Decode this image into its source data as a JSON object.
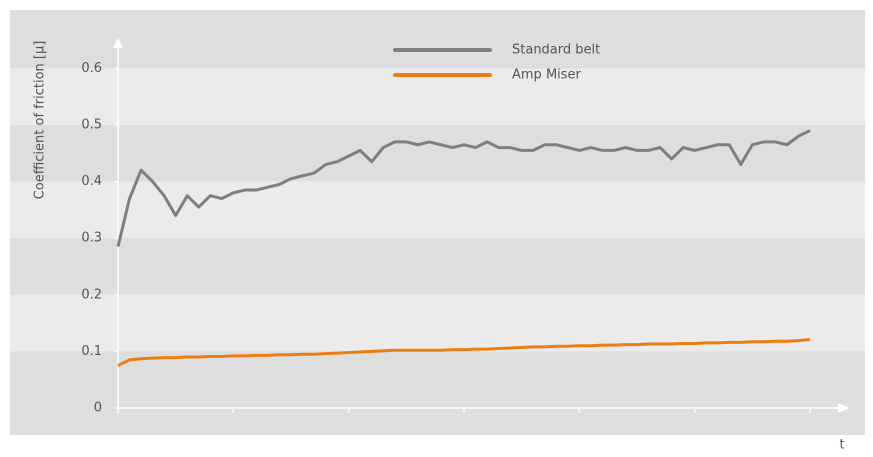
{
  "chart_data": {
    "type": "line",
    "y_label": "Coefficient of friction [µ]",
    "x_label": "t",
    "x": [
      0,
      1,
      2,
      3,
      4,
      5,
      6,
      7,
      8,
      9,
      10,
      11,
      12,
      13,
      14,
      15,
      16,
      17,
      18,
      19,
      20,
      21,
      22,
      23,
      24,
      25,
      26,
      27,
      28,
      29,
      30,
      31,
      32,
      33,
      34,
      35,
      36,
      37,
      38,
      39,
      40,
      41,
      42,
      43,
      44,
      45,
      46,
      47,
      48,
      49,
      50,
      51,
      52,
      53,
      54,
      55,
      56,
      57,
      58,
      59,
      60
    ],
    "xlim": [
      0,
      60
    ],
    "ylim": [
      0,
      0.65
    ],
    "yticks": [
      0,
      0.1,
      0.2,
      0.3,
      0.4,
      0.5,
      0.6
    ],
    "grid": true,
    "legend": "top",
    "series": [
      {
        "name": "Standard belt",
        "color": "#7f7f7f",
        "values": [
          0.285,
          0.37,
          0.42,
          0.4,
          0.375,
          0.34,
          0.375,
          0.355,
          0.375,
          0.37,
          0.38,
          0.385,
          0.385,
          0.39,
          0.395,
          0.405,
          0.41,
          0.415,
          0.43,
          0.435,
          0.445,
          0.455,
          0.435,
          0.46,
          0.47,
          0.47,
          0.465,
          0.47,
          0.465,
          0.46,
          0.465,
          0.46,
          0.47,
          0.46,
          0.46,
          0.455,
          0.455,
          0.465,
          0.465,
          0.46,
          0.455,
          0.46,
          0.455,
          0.455,
          0.46,
          0.455,
          0.455,
          0.46,
          0.44,
          0.46,
          0.455,
          0.46,
          0.465,
          0.465,
          0.43,
          0.465,
          0.47,
          0.47,
          0.465,
          0.48,
          0.49
        ]
      },
      {
        "name": "Amp Miser",
        "color": "#ee7d11",
        "values": [
          0.075,
          0.085,
          0.087,
          0.088,
          0.089,
          0.089,
          0.09,
          0.09,
          0.091,
          0.091,
          0.092,
          0.092,
          0.093,
          0.093,
          0.094,
          0.094,
          0.095,
          0.095,
          0.096,
          0.097,
          0.098,
          0.099,
          0.1,
          0.101,
          0.102,
          0.102,
          0.102,
          0.102,
          0.102,
          0.103,
          0.103,
          0.104,
          0.104,
          0.105,
          0.106,
          0.107,
          0.108,
          0.108,
          0.109,
          0.109,
          0.11,
          0.11,
          0.111,
          0.111,
          0.112,
          0.112,
          0.113,
          0.113,
          0.113,
          0.114,
          0.114,
          0.115,
          0.115,
          0.116,
          0.116,
          0.117,
          0.117,
          0.118,
          0.118,
          0.119,
          0.121
        ]
      }
    ]
  }
}
